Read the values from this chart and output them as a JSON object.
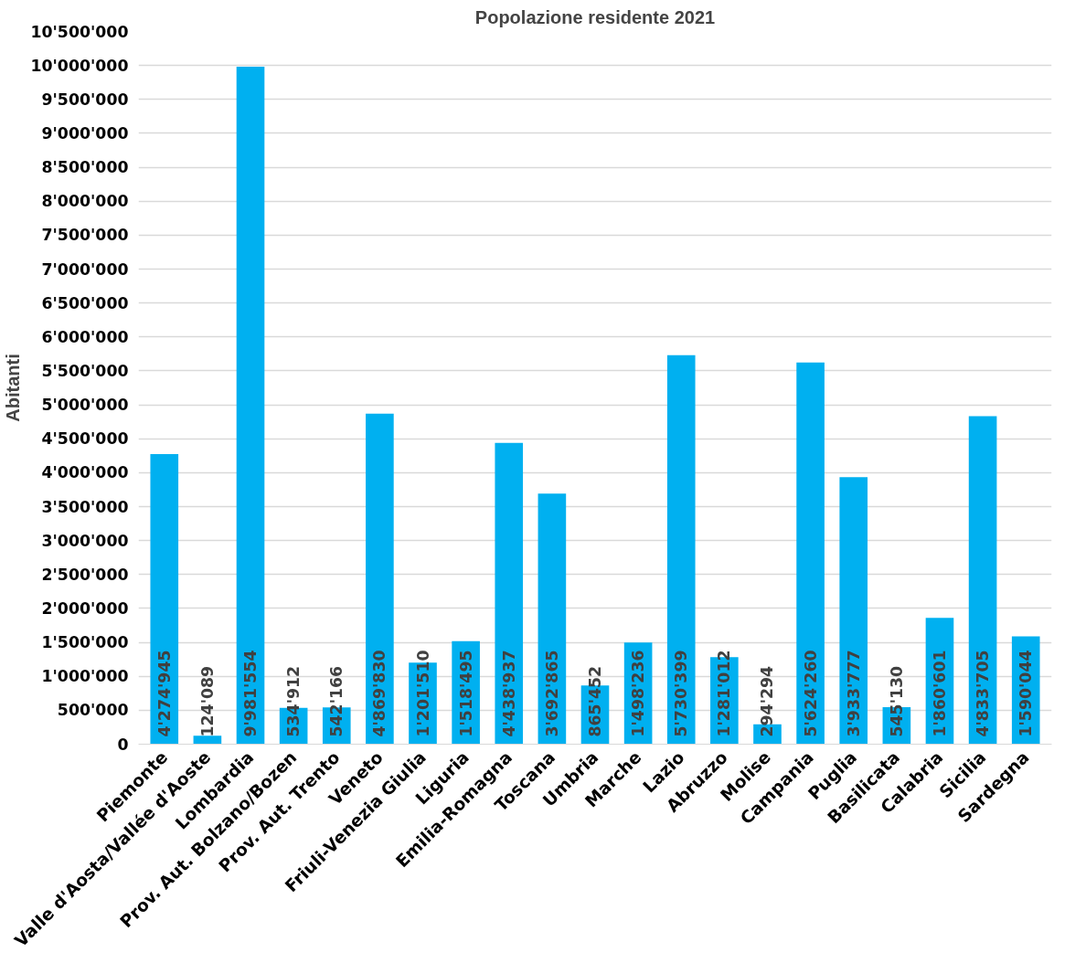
{
  "chart_data": {
    "type": "bar",
    "title": "Popolazione residente 2021",
    "ylabel": "Abitanti",
    "categories": [
      "Piemonte",
      "Valle d'Aosta/Vallée d'Aoste",
      "Lombardia",
      "Prov. Aut. Bolzano/Bozen",
      "Prov. Aut. Trento",
      "Veneto",
      "Friuli-Venezia Giulia",
      "Liguria",
      "Emilia-Romagna",
      "Toscana",
      "Umbria",
      "Marche",
      "Lazio",
      "Abruzzo",
      "Molise",
      "Campania",
      "Puglia",
      "Basilicata",
      "Calabria",
      "Sicilia",
      "Sardegna"
    ],
    "values": [
      4274945,
      124089,
      9981554,
      534912,
      542166,
      4869830,
      1201510,
      1518495,
      4438937,
      3692865,
      865452,
      1498236,
      5730399,
      1281012,
      294294,
      5624260,
      3933777,
      545130,
      1860601,
      4833705,
      1590044
    ],
    "value_labels": [
      "4'274'945",
      "124'089",
      "9'981'554",
      "534'912",
      "542'166",
      "4'869'830",
      "1'201'510",
      "1'518'495",
      "4'438'937",
      "3'692'865",
      "865'452",
      "1'498'236",
      "5'730'399",
      "1'281'012",
      "294'294",
      "5'624'260",
      "3'933'777",
      "545'130",
      "1'860'601",
      "4'833'705",
      "1'590'044"
    ],
    "color": "#00b0f0",
    "ylim": [
      0,
      10500000
    ],
    "yticks": [
      {
        "value": 0,
        "label": "0"
      },
      {
        "value": 500000,
        "label": "500'000"
      },
      {
        "value": 1000000,
        "label": "1'000'000"
      },
      {
        "value": 1500000,
        "label": "1'500'000"
      },
      {
        "value": 2000000,
        "label": "2'000'000"
      },
      {
        "value": 2500000,
        "label": "2'500'000"
      },
      {
        "value": 3000000,
        "label": "3'000'000"
      },
      {
        "value": 3500000,
        "label": "3'500'000"
      },
      {
        "value": 4000000,
        "label": "4'000'000"
      },
      {
        "value": 4500000,
        "label": "4'500'000"
      },
      {
        "value": 5000000,
        "label": "5'000'000"
      },
      {
        "value": 5500000,
        "label": "5'500'000"
      },
      {
        "value": 6000000,
        "label": "6'000'000"
      },
      {
        "value": 6500000,
        "label": "6'500'000"
      },
      {
        "value": 7000000,
        "label": "7'000'000"
      },
      {
        "value": 7500000,
        "label": "7'500'000"
      },
      {
        "value": 8000000,
        "label": "8'000'000"
      },
      {
        "value": 8500000,
        "label": "8'500'000"
      },
      {
        "value": 9000000,
        "label": "9'000'000"
      },
      {
        "value": 9500000,
        "label": "9'500'000"
      },
      {
        "value": 10000000,
        "label": "10'000'000"
      },
      {
        "value": 10500000,
        "label": "10'500'000"
      }
    ],
    "grid": "y"
  }
}
